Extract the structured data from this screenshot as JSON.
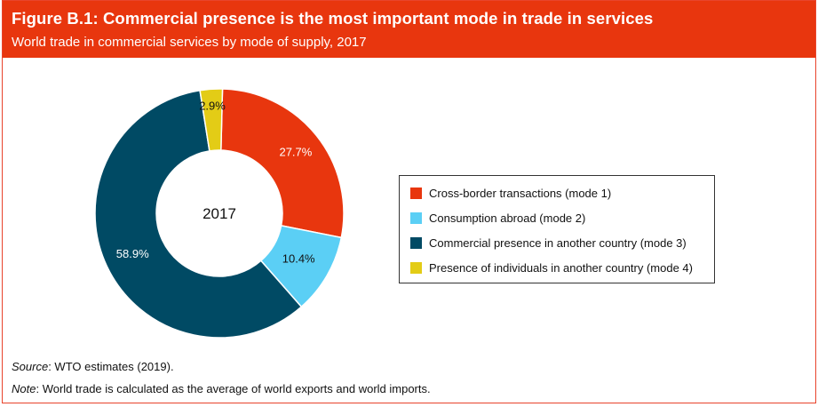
{
  "header": {
    "title": "Figure B.1: Commercial presence is the most important mode in trade in services",
    "subtitle": "World trade in commercial services by mode of supply, 2017"
  },
  "chart_data": {
    "type": "pie",
    "center_label": "2017",
    "slices": [
      {
        "name": "Cross-border transactions (mode 1)",
        "value": 27.7,
        "label": "27.7%",
        "color": "#e8360e"
      },
      {
        "name": "Consumption abroad (mode 2)",
        "value": 10.4,
        "label": "10.4%",
        "color": "#5bcff5"
      },
      {
        "name": "Commercial presence in another country (mode 3)",
        "value": 58.9,
        "label": "58.9%",
        "color": "#004a64"
      },
      {
        "name": "Presence of individuals in another country (mode 4)",
        "value": 2.9,
        "label": "2.9%",
        "color": "#e3cc16"
      }
    ],
    "legend_position": "right"
  },
  "footer": {
    "source_label": "Source",
    "source_text": ": WTO estimates (2019).",
    "note_label": "Note",
    "note_text": ": World trade is calculated as the average of world exports and world imports."
  }
}
